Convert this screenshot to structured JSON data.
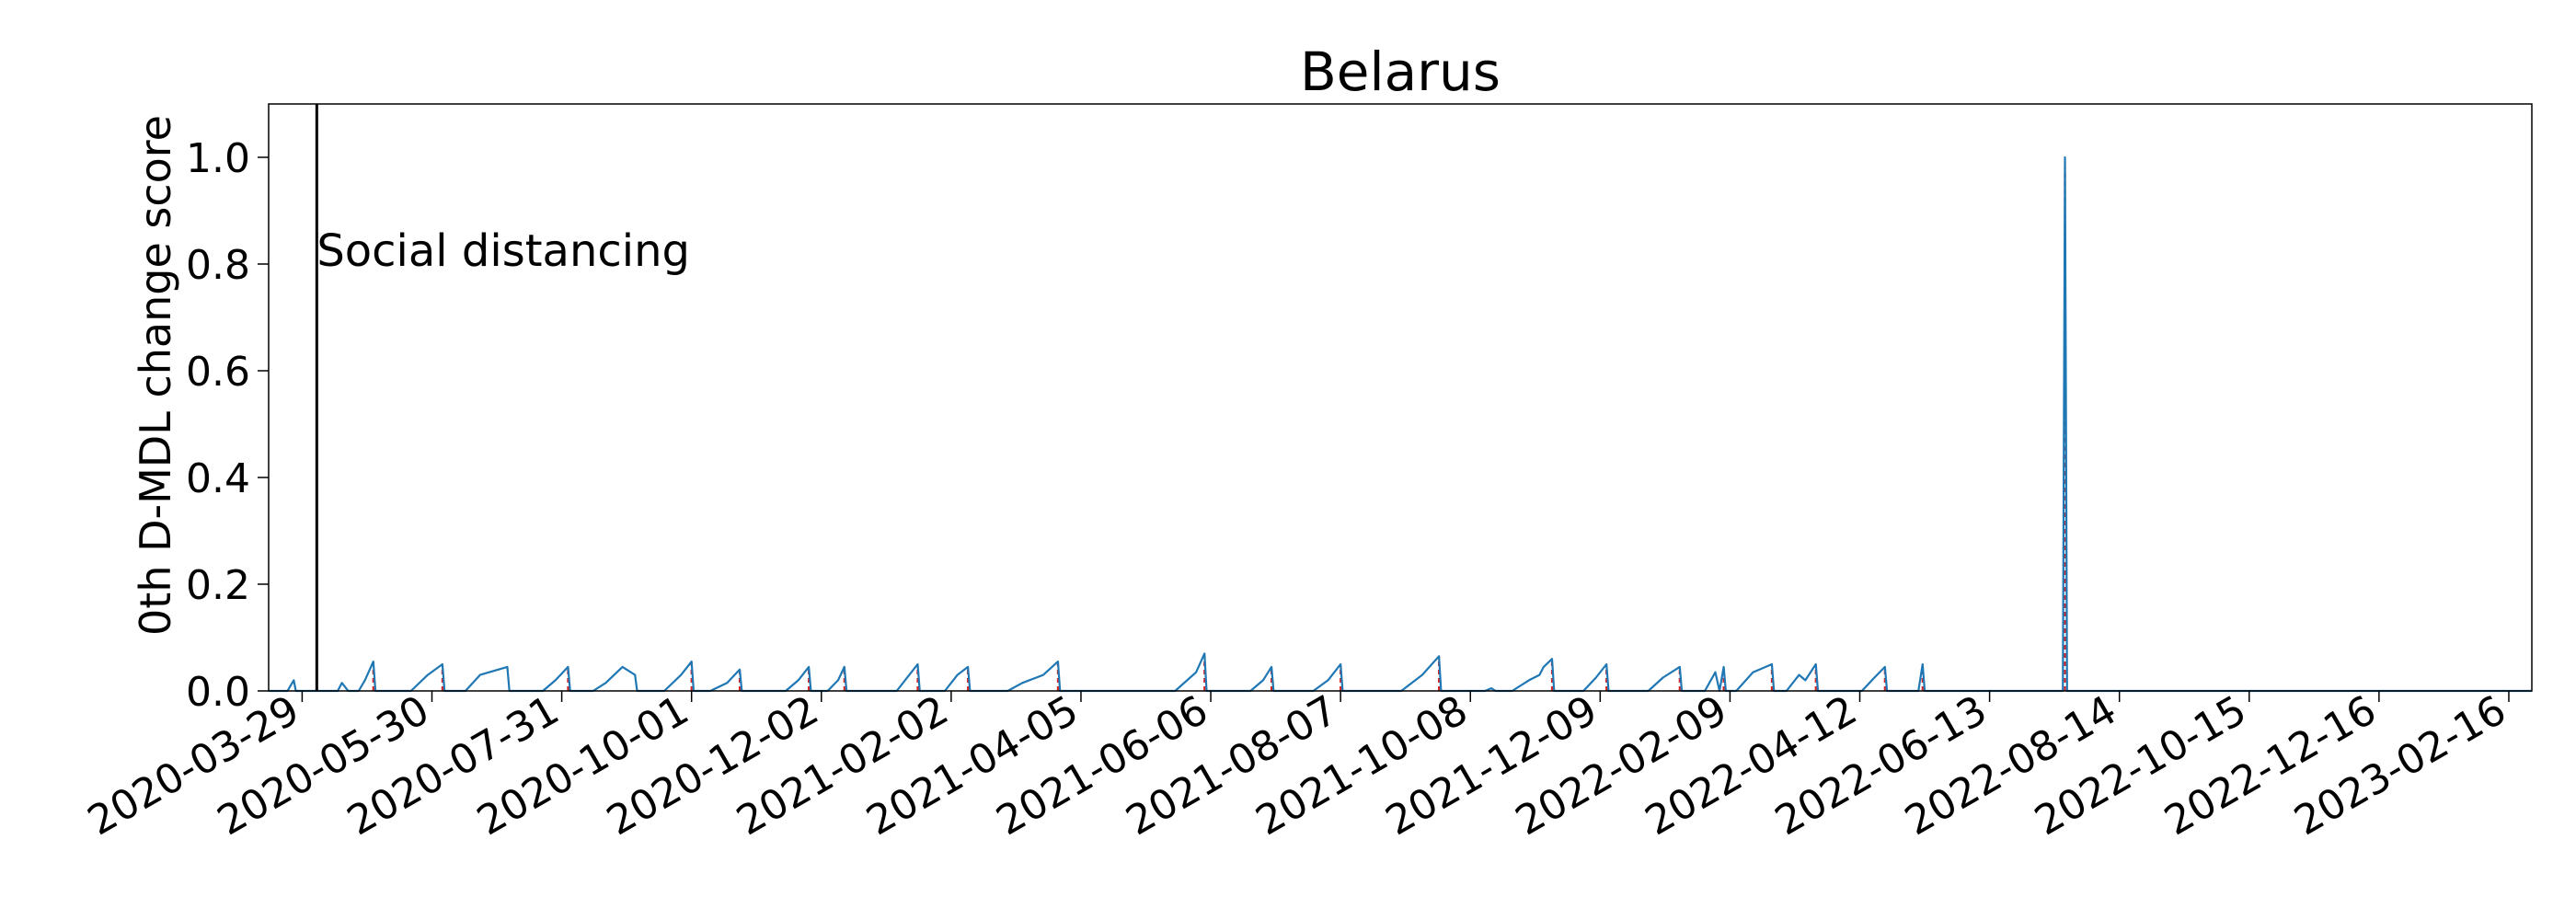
{
  "chart_data": {
    "type": "line",
    "title": "Belarus",
    "xlabel": "",
    "ylabel": "0th D-MDL change score",
    "ylim": [
      0,
      1.1
    ],
    "xlim": [
      "2020-03-13",
      "2023-02-27"
    ],
    "yticks": [
      0.0,
      0.2,
      0.4,
      0.6,
      0.8,
      1.0
    ],
    "ytick_labels": [
      "0.0",
      "0.2",
      "0.4",
      "0.6",
      "0.8",
      "1.0"
    ],
    "xticks": [
      "2020-03-29",
      "2020-05-30",
      "2020-07-31",
      "2020-10-01",
      "2020-12-02",
      "2021-02-02",
      "2021-04-05",
      "2021-06-06",
      "2021-08-07",
      "2021-10-08",
      "2021-12-09",
      "2022-02-09",
      "2022-04-12",
      "2022-06-13",
      "2022-08-14",
      "2022-10-15",
      "2022-12-16",
      "2023-02-16"
    ],
    "grid": false,
    "series": [
      {
        "color": "#1f77b4",
        "points": [
          [
            "2020-03-13",
            0
          ],
          [
            "2020-03-22",
            0
          ],
          [
            "2020-03-25",
            0.02
          ],
          [
            "2020-03-26",
            0
          ],
          [
            "2020-04-15",
            0
          ],
          [
            "2020-04-17",
            0.015
          ],
          [
            "2020-04-20",
            0
          ],
          [
            "2020-04-25",
            0
          ],
          [
            "2020-04-28",
            0.02
          ],
          [
            "2020-05-02",
            0.055
          ],
          [
            "2020-05-03",
            0
          ],
          [
            "2020-05-20",
            0
          ],
          [
            "2020-05-28",
            0.03
          ],
          [
            "2020-06-04",
            0.05
          ],
          [
            "2020-06-05",
            0
          ],
          [
            "2020-06-15",
            0
          ],
          [
            "2020-06-22",
            0.03
          ],
          [
            "2020-07-05",
            0.045
          ],
          [
            "2020-07-06",
            0
          ],
          [
            "2020-07-22",
            0
          ],
          [
            "2020-07-28",
            0.02
          ],
          [
            "2020-08-03",
            0.045
          ],
          [
            "2020-08-04",
            0
          ],
          [
            "2020-08-15",
            0
          ],
          [
            "2020-08-21",
            0.015
          ],
          [
            "2020-08-29",
            0.045
          ],
          [
            "2020-09-04",
            0.03
          ],
          [
            "2020-09-05",
            0
          ],
          [
            "2020-09-18",
            0
          ],
          [
            "2020-09-26",
            0.03
          ],
          [
            "2020-10-01",
            0.055
          ],
          [
            "2020-10-02",
            0
          ],
          [
            "2020-10-10",
            0
          ],
          [
            "2020-10-18",
            0.015
          ],
          [
            "2020-10-24",
            0.04
          ],
          [
            "2020-10-25",
            0
          ],
          [
            "2020-11-15",
            0
          ],
          [
            "2020-11-21",
            0.02
          ],
          [
            "2020-11-26",
            0.045
          ],
          [
            "2020-11-27",
            0
          ],
          [
            "2020-12-05",
            0
          ],
          [
            "2020-12-10",
            0.02
          ],
          [
            "2020-12-13",
            0.045
          ],
          [
            "2020-12-14",
            0
          ],
          [
            "2021-01-07",
            0
          ],
          [
            "2021-01-13",
            0.03
          ],
          [
            "2021-01-17",
            0.05
          ],
          [
            "2021-01-18",
            0
          ],
          [
            "2021-01-30",
            0
          ],
          [
            "2021-02-05",
            0.03
          ],
          [
            "2021-02-10",
            0.045
          ],
          [
            "2021-02-11",
            0
          ],
          [
            "2021-03-01",
            0
          ],
          [
            "2021-03-08",
            0.015
          ],
          [
            "2021-03-18",
            0.03
          ],
          [
            "2021-03-25",
            0.055
          ],
          [
            "2021-03-26",
            0
          ],
          [
            "2021-05-20",
            0
          ],
          [
            "2021-05-30",
            0.035
          ],
          [
            "2021-06-03",
            0.07
          ],
          [
            "2021-06-04",
            0
          ],
          [
            "2021-06-25",
            0
          ],
          [
            "2021-07-01",
            0.02
          ],
          [
            "2021-07-05",
            0.045
          ],
          [
            "2021-07-06",
            0
          ],
          [
            "2021-07-25",
            0
          ],
          [
            "2021-08-01",
            0.02
          ],
          [
            "2021-08-07",
            0.05
          ],
          [
            "2021-08-08",
            0
          ],
          [
            "2021-09-05",
            0
          ],
          [
            "2021-09-15",
            0.03
          ],
          [
            "2021-09-23",
            0.065
          ],
          [
            "2021-09-24",
            0
          ],
          [
            "2021-10-15",
            0
          ],
          [
            "2021-10-18",
            0.005
          ],
          [
            "2021-10-20",
            0
          ],
          [
            "2021-10-28",
            0
          ],
          [
            "2021-11-05",
            0.02
          ],
          [
            "2021-11-10",
            0.03
          ],
          [
            "2021-11-12",
            0.045
          ],
          [
            "2021-11-16",
            0.06
          ],
          [
            "2021-11-17",
            0
          ],
          [
            "2021-12-01",
            0
          ],
          [
            "2021-12-07",
            0.025
          ],
          [
            "2021-12-12",
            0.05
          ],
          [
            "2021-12-13",
            0
          ],
          [
            "2022-01-01",
            0
          ],
          [
            "2022-01-08",
            0.025
          ],
          [
            "2022-01-16",
            0.045
          ],
          [
            "2022-01-17",
            0
          ],
          [
            "2022-01-28",
            0
          ],
          [
            "2022-02-02",
            0.035
          ],
          [
            "2022-02-04",
            0
          ],
          [
            "2022-02-06",
            0.045
          ],
          [
            "2022-02-07",
            0
          ],
          [
            "2022-02-12",
            0
          ],
          [
            "2022-02-20",
            0.035
          ],
          [
            "2022-03-01",
            0.05
          ],
          [
            "2022-03-02",
            0
          ],
          [
            "2022-03-08",
            0
          ],
          [
            "2022-03-14",
            0.03
          ],
          [
            "2022-03-17",
            0.02
          ],
          [
            "2022-03-22",
            0.05
          ],
          [
            "2022-03-23",
            0
          ],
          [
            "2022-04-13",
            0
          ],
          [
            "2022-04-19",
            0.025
          ],
          [
            "2022-04-24",
            0.045
          ],
          [
            "2022-04-25",
            0
          ],
          [
            "2022-05-10",
            0
          ],
          [
            "2022-05-12",
            0.05
          ],
          [
            "2022-05-13",
            0
          ],
          [
            "2022-07-18",
            0
          ],
          [
            "2022-07-19",
            1.0
          ],
          [
            "2022-07-20",
            0
          ],
          [
            "2023-02-27",
            0
          ]
        ]
      }
    ],
    "change_points": [
      "2020-05-02",
      "2020-06-04",
      "2020-08-03",
      "2020-10-01",
      "2020-10-24",
      "2020-11-26",
      "2020-12-13",
      "2021-01-17",
      "2021-02-10",
      "2021-03-25",
      "2021-06-03",
      "2021-07-05",
      "2021-08-07",
      "2021-09-23",
      "2021-11-16",
      "2021-12-12",
      "2022-01-16",
      "2022-02-06",
      "2022-03-01",
      "2022-03-22",
      "2022-04-24",
      "2022-05-12",
      "2022-07-19"
    ],
    "change_point_color": "#d62728",
    "annotation": {
      "date": "2020-04-05",
      "label": "Social distancing",
      "color": "#000000"
    }
  }
}
